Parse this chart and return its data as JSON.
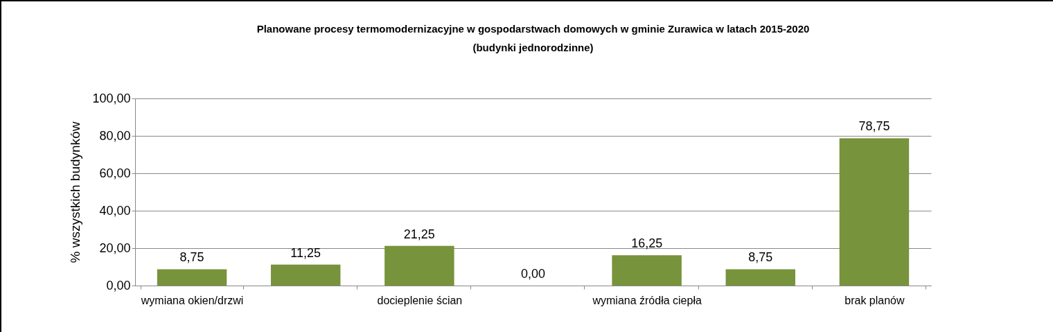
{
  "chart_data": {
    "type": "bar",
    "title": "Planowane procesy termomodernizacyjne w gospodarstwach domowych w gminie Zurawica w latach 2015-2020\n(budynki jednorodzinne)",
    "ylabel": "% wszystkich budynków",
    "categories": [
      "wymiana okien/drzwi",
      null,
      "docieplenie ścian",
      null,
      "wymiana źródła ciepła",
      null,
      "brak planów"
    ],
    "values": [
      8.75,
      11.25,
      21.25,
      0,
      16.25,
      8.75,
      78.75
    ],
    "value_labels": [
      "8,75",
      "11,25",
      "21,25",
      "0,00",
      "16,25",
      "8,75",
      "78,75"
    ],
    "color": "#77933c",
    "ylim": [
      0,
      100
    ],
    "yticks": [
      {
        "value": 0,
        "label": "0,00"
      },
      {
        "value": 20,
        "label": "20,00"
      },
      {
        "value": 40,
        "label": "40,00"
      },
      {
        "value": 60,
        "label": "60,00"
      },
      {
        "value": 80,
        "label": "80,00"
      },
      {
        "value": 100,
        "label": "100,00"
      }
    ],
    "grid": "y"
  }
}
